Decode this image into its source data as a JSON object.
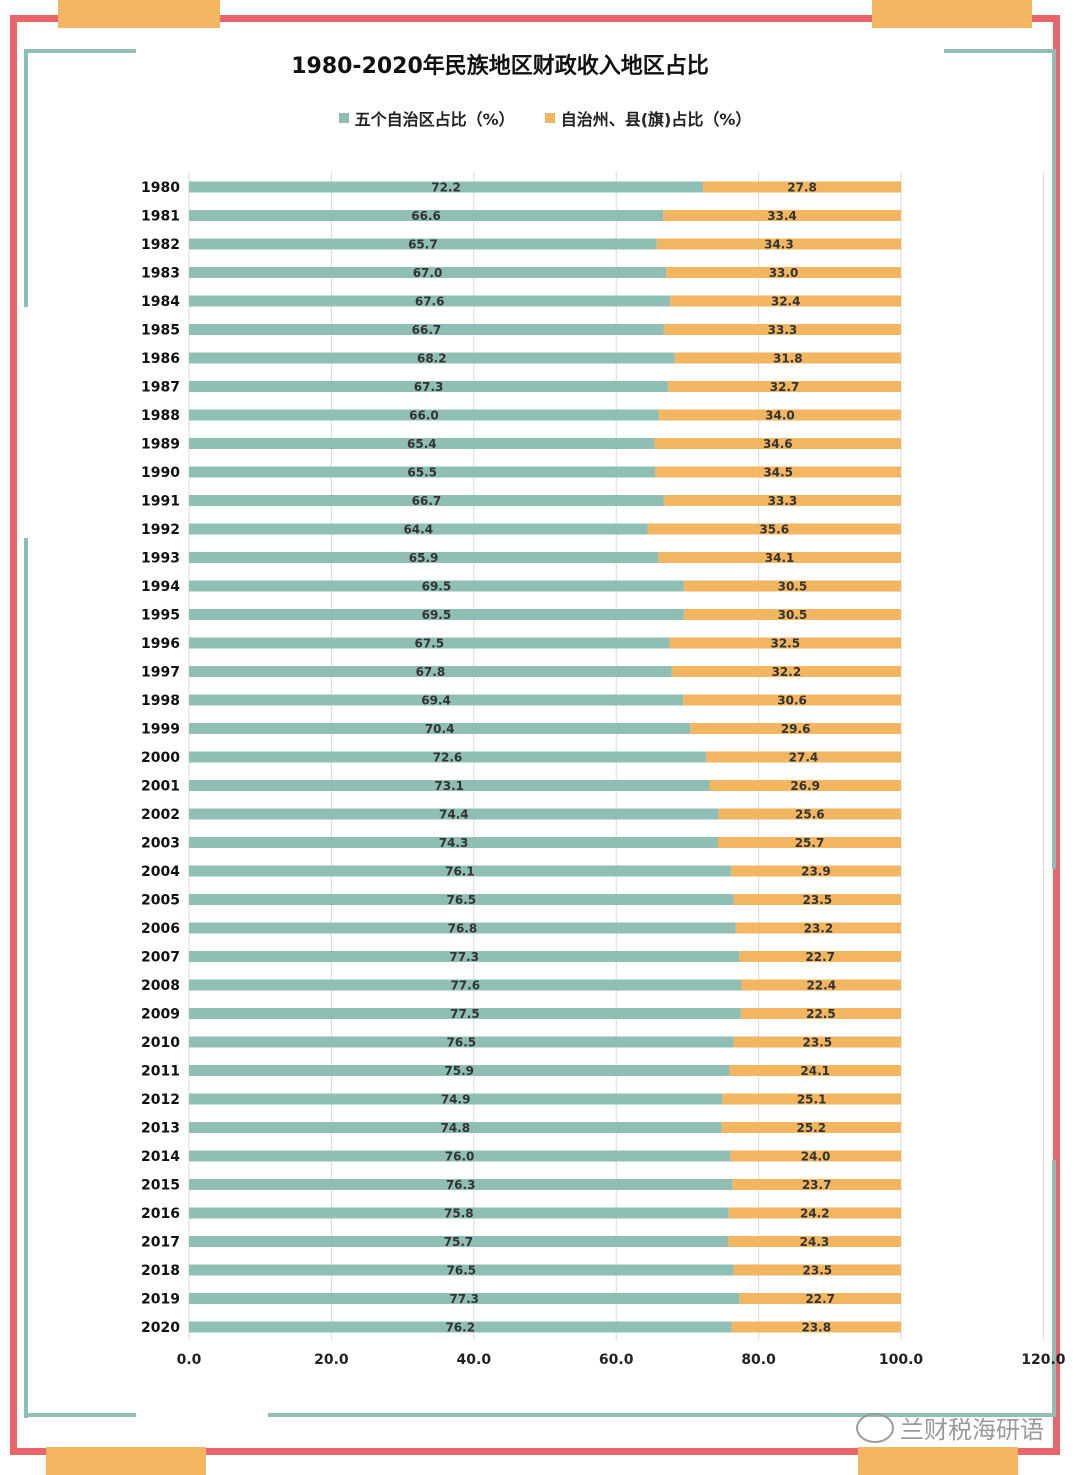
{
  "chart_data": {
    "type": "bar",
    "orientation": "horizontal",
    "stacked": true,
    "title": "1980-2020年民族地区财政收入地区占比",
    "categories": [
      "1980",
      "1981",
      "1982",
      "1983",
      "1984",
      "1985",
      "1986",
      "1987",
      "1988",
      "1989",
      "1990",
      "1991",
      "1992",
      "1993",
      "1994",
      "1995",
      "1996",
      "1997",
      "1998",
      "1999",
      "2000",
      "2001",
      "2002",
      "2003",
      "2004",
      "2005",
      "2006",
      "2007",
      "2008",
      "2009",
      "2010",
      "2011",
      "2012",
      "2013",
      "2014",
      "2015",
      "2016",
      "2017",
      "2018",
      "2019",
      "2020"
    ],
    "series": [
      {
        "name": "五个自治区占比（%）",
        "color": "#8fbfb4",
        "values": [
          72.2,
          66.6,
          65.7,
          67.0,
          67.6,
          66.7,
          68.2,
          67.3,
          66.0,
          65.4,
          65.5,
          66.7,
          64.4,
          65.9,
          69.5,
          69.5,
          67.5,
          67.8,
          69.4,
          70.4,
          72.6,
          73.1,
          74.4,
          74.3,
          76.1,
          76.5,
          76.8,
          77.3,
          77.6,
          77.5,
          76.5,
          75.9,
          74.9,
          74.8,
          76.0,
          76.3,
          75.8,
          75.7,
          76.5,
          77.3,
          76.2
        ]
      },
      {
        "name": "自治州、县(旗)占比（%）",
        "color": "#f2b560",
        "values": [
          27.8,
          33.4,
          34.3,
          33.0,
          32.4,
          33.3,
          31.8,
          32.7,
          34.0,
          34.6,
          34.5,
          33.3,
          35.6,
          34.1,
          30.5,
          30.5,
          32.5,
          32.2,
          30.6,
          29.6,
          27.4,
          26.9,
          25.6,
          25.7,
          23.9,
          23.5,
          23.2,
          22.7,
          22.4,
          22.5,
          23.5,
          24.1,
          25.1,
          25.2,
          24.0,
          23.7,
          24.2,
          24.3,
          23.5,
          22.7,
          23.8
        ]
      }
    ],
    "xlim": [
      0,
      120
    ],
    "xticks": [
      "0.0",
      "20.0",
      "40.0",
      "60.0",
      "80.0",
      "100.0",
      "120.0"
    ],
    "xlabel": "",
    "ylabel": "",
    "grid": true,
    "legend_position": "top"
  },
  "watermark": {
    "text": "兰财税海研语",
    "icon": "wechat-icon"
  },
  "colors": {
    "frame": "#e8666a",
    "accent_tab": "#f2b560",
    "corner": "#8fbfb4"
  }
}
